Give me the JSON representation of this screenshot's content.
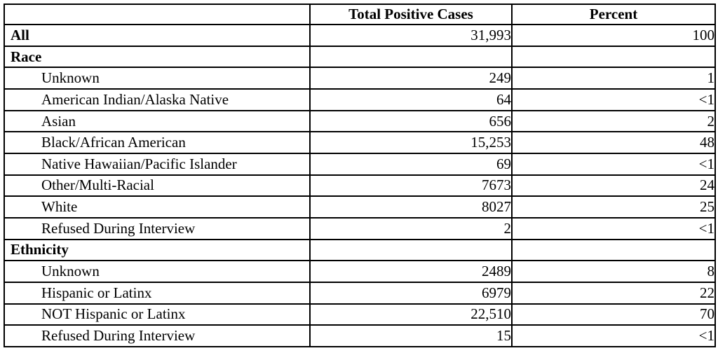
{
  "table": {
    "columns": [
      "",
      "Total Positive Cases",
      "Percent"
    ],
    "rows": [
      {
        "label": "All",
        "cases": "31,993",
        "percent": "100",
        "style": "group"
      },
      {
        "label": "Race",
        "cases": "",
        "percent": "",
        "style": "group"
      },
      {
        "label": "Unknown",
        "cases": "249",
        "percent": "1",
        "style": "sub"
      },
      {
        "label": "American Indian/Alaska Native",
        "cases": "64",
        "percent": "<1",
        "style": "sub"
      },
      {
        "label": "Asian",
        "cases": "656",
        "percent": "2",
        "style": "sub"
      },
      {
        "label": "Black/African American",
        "cases": "15,253",
        "percent": "48",
        "style": "sub"
      },
      {
        "label": "Native Hawaiian/Pacific Islander",
        "cases": "69",
        "percent": "<1",
        "style": "sub"
      },
      {
        "label": "Other/Multi-Racial",
        "cases": "7673",
        "percent": "24",
        "style": "sub"
      },
      {
        "label": "White",
        "cases": "8027",
        "percent": "25",
        "style": "sub"
      },
      {
        "label": "Refused During Interview",
        "cases": "2",
        "percent": "<1",
        "style": "sub"
      },
      {
        "label": "Ethnicity",
        "cases": "",
        "percent": "",
        "style": "group"
      },
      {
        "label": "Unknown",
        "cases": "2489",
        "percent": "8",
        "style": "sub"
      },
      {
        "label": "Hispanic or Latinx",
        "cases": "6979",
        "percent": "22",
        "style": "sub"
      },
      {
        "label": "NOT Hispanic or Latinx",
        "cases": "22,510",
        "percent": "70",
        "style": "sub"
      },
      {
        "label": "Refused During Interview",
        "cases": "15",
        "percent": "<1",
        "style": "sub"
      }
    ]
  }
}
